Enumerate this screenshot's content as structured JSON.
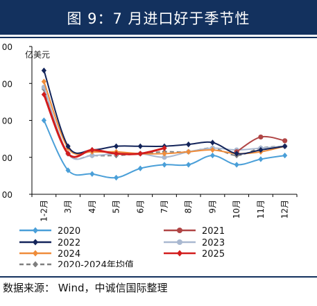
{
  "header": {
    "title": "图 9：7 月进口好于季节性"
  },
  "footer": {
    "source": "数据来源： Wind，中诚信国际整理"
  },
  "chart_data": {
    "type": "line",
    "title": "图 9：7 月进口好于季节性",
    "ylabel": "亿美元",
    "y_tick_labels": [
      "00",
      "00",
      "00",
      "00",
      "00"
    ],
    "ylim": [
      0,
      4
    ],
    "categories": [
      "1-2月",
      "3月",
      "4月",
      "5月",
      "6月",
      "7月",
      "8月",
      "9月",
      "10月",
      "11月",
      "12月"
    ],
    "legend_position": "bottom",
    "series": [
      {
        "name": "2020",
        "color": "#4a9fd8",
        "dashed": false,
        "marker": "diamond",
        "values": [
          2.0,
          0.65,
          0.55,
          0.45,
          0.7,
          0.8,
          0.8,
          1.05,
          0.8,
          0.95,
          1.05
        ]
      },
      {
        "name": "2021",
        "color": "#b04545",
        "dashed": false,
        "marker": "circle",
        "values": [
          null,
          null,
          null,
          null,
          null,
          null,
          null,
          null,
          1.15,
          1.55,
          1.45
        ]
      },
      {
        "name": "2022",
        "color": "#13245a",
        "dashed": false,
        "marker": "diamond",
        "values": [
          3.35,
          1.3,
          1.2,
          1.3,
          1.3,
          1.3,
          1.35,
          1.4,
          1.1,
          1.2,
          1.3
        ]
      },
      {
        "name": "2023",
        "color": "#a9b8d0",
        "dashed": false,
        "marker": "circle",
        "values": [
          2.9,
          1.1,
          1.05,
          1.1,
          1.1,
          1.0,
          1.15,
          1.25,
          1.2,
          1.25,
          1.3
        ]
      },
      {
        "name": "2024",
        "color": "#ef8c3a",
        "dashed": false,
        "marker": "diamond",
        "values": [
          3.05,
          1.25,
          1.15,
          1.15,
          1.1,
          1.1,
          1.15,
          1.2,
          1.1,
          1.15,
          1.3
        ]
      },
      {
        "name": "2025",
        "color": "#d21c1c",
        "dashed": false,
        "marker": "diamond",
        "values": [
          2.7,
          1.1,
          1.2,
          1.1,
          1.1,
          1.25,
          null,
          null,
          null,
          null,
          null
        ]
      },
      {
        "name": "2020-2024年均值",
        "color": "#7f7f7f",
        "dashed": true,
        "marker": "diamond",
        "values": [
          2.85,
          1.1,
          1.05,
          1.05,
          1.1,
          1.15,
          1.15,
          1.25,
          1.05,
          1.25,
          1.3
        ]
      }
    ]
  }
}
